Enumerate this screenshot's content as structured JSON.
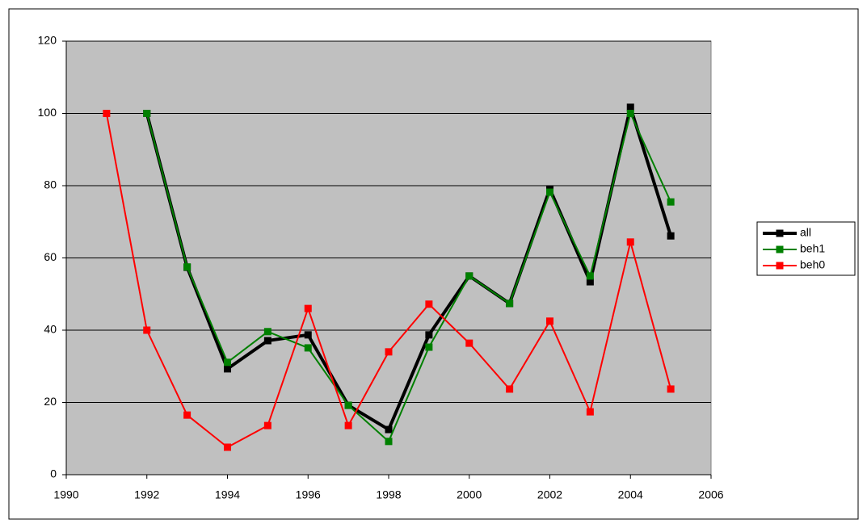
{
  "chart_data": {
    "type": "line",
    "x": [
      1991,
      1992,
      1993,
      1994,
      1995,
      1996,
      1997,
      1998,
      1999,
      2000,
      2001,
      2002,
      2003,
      2004,
      2005
    ],
    "series": [
      {
        "name": "all",
        "color": "#000000",
        "values": [
          null,
          100,
          57.4,
          29.3,
          37.1,
          38.7,
          19.2,
          12.5,
          38.7,
          55,
          47.4,
          79.1,
          53.4,
          101.7,
          66.1
        ]
      },
      {
        "name": "beh1",
        "color": "#008000",
        "values": [
          null,
          100,
          57.5,
          31.1,
          39.6,
          35.1,
          19.2,
          9.2,
          35.3,
          55,
          47.4,
          78.2,
          55,
          100,
          75.5
        ]
      },
      {
        "name": "beh0",
        "color": "#ff0000",
        "values": [
          100,
          40,
          16.5,
          7.6,
          13.6,
          46,
          13.6,
          34,
          47.2,
          36.4,
          23.7,
          42.5,
          17.4,
          64.4,
          23.7
        ]
      }
    ],
    "xlim": [
      1990,
      2006
    ],
    "xticks": [
      1990,
      1992,
      1994,
      1996,
      1998,
      2000,
      2002,
      2004,
      2006
    ],
    "ylim": [
      0,
      120
    ],
    "yticks": [
      0,
      20,
      40,
      60,
      80,
      100,
      120
    ],
    "grid": true,
    "legend": "right"
  }
}
